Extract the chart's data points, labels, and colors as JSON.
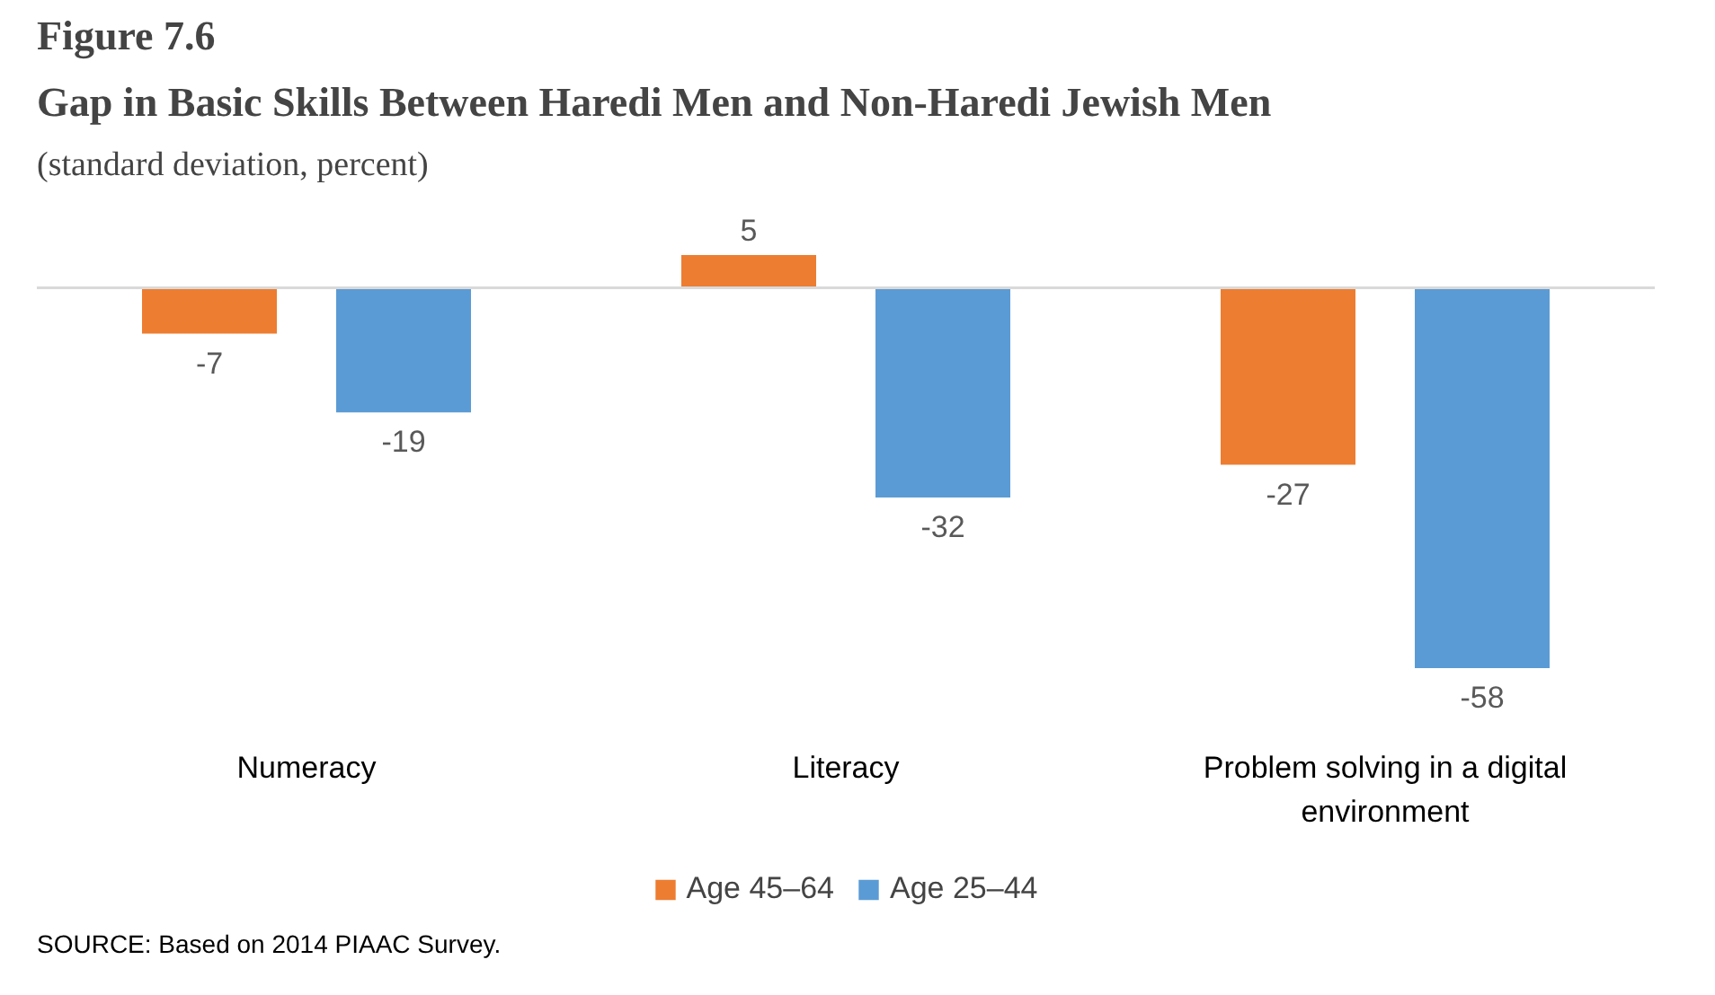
{
  "chart_data": {
    "type": "bar",
    "title": "Gap in Basic Skills Between Haredi Men and Non-Haredi Jewish Men",
    "subtitle": "(standard deviation, percent)",
    "categories": [
      "Numeracy",
      "Literacy",
      "Problem solving in a digital environment"
    ],
    "series": [
      {
        "name": "Age 45–64",
        "color": "#ed7d31",
        "values": [
          -7,
          5,
          -27
        ]
      },
      {
        "name": "Age 25–44",
        "color": "#5b9bd5",
        "values": [
          -19,
          -32,
          -58
        ]
      }
    ],
    "data_labels": true,
    "legend": "bottom",
    "annotations": [
      "Figure 7.6",
      "SOURCE: Based on 2014 PIAAC Survey."
    ]
  }
}
